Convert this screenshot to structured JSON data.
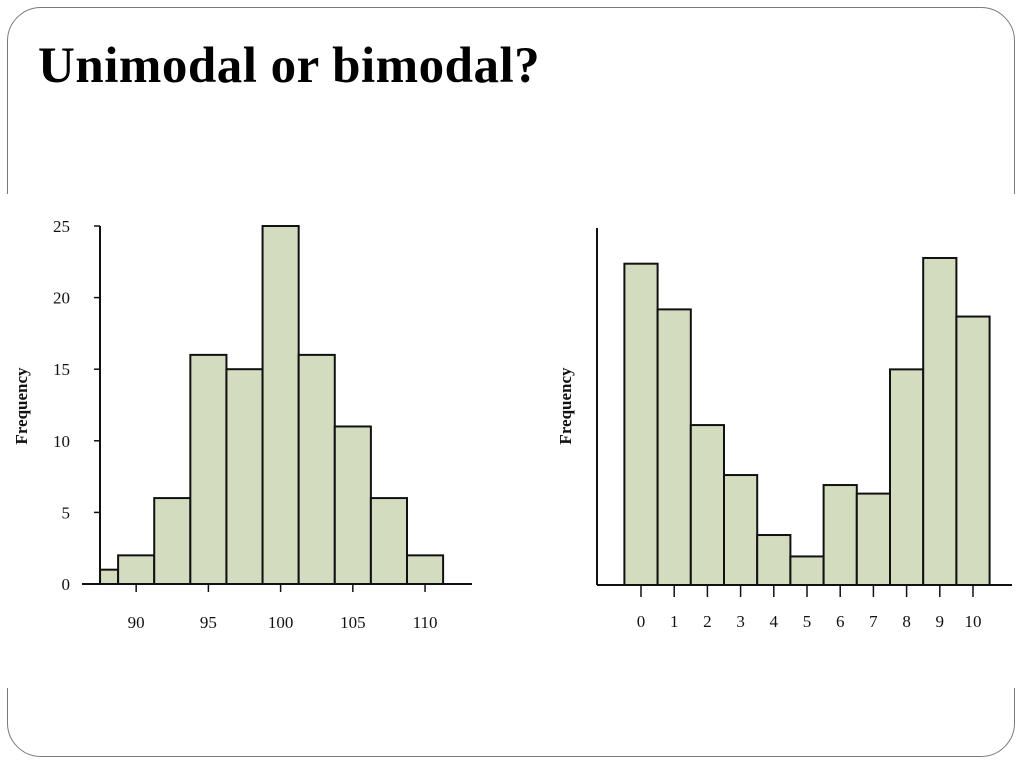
{
  "slide": {
    "title": "Unimodal or bimodal?"
  },
  "colors": {
    "bar_fill": "#d3dcbf",
    "bar_stroke": "#111111",
    "axis": "#111111"
  },
  "chart_data": [
    {
      "type": "bar",
      "title": "",
      "xlabel": "",
      "ylabel": "Frequency",
      "ylim": [
        0,
        25
      ],
      "y_ticks": [
        "0",
        "5",
        "10",
        "15",
        "20",
        "25"
      ],
      "x_ticks": [
        "90",
        "95",
        "100",
        "105",
        "110"
      ],
      "bins": [
        {
          "from": 87.5,
          "to": 88.75,
          "value": 1
        },
        {
          "from": 88.75,
          "to": 91.25,
          "value": 2
        },
        {
          "from": 91.25,
          "to": 93.75,
          "value": 6
        },
        {
          "from": 93.75,
          "to": 96.25,
          "value": 16
        },
        {
          "from": 96.25,
          "to": 98.75,
          "value": 15
        },
        {
          "from": 98.75,
          "to": 101.25,
          "value": 25
        },
        {
          "from": 101.25,
          "to": 103.75,
          "value": 16
        },
        {
          "from": 103.75,
          "to": 106.25,
          "value": 11
        },
        {
          "from": 106.25,
          "to": 108.75,
          "value": 6
        },
        {
          "from": 108.75,
          "to": 111.25,
          "value": 2
        }
      ],
      "grid": false,
      "legend": "none"
    },
    {
      "type": "bar",
      "title": "",
      "xlabel": "",
      "ylabel": "Frequency",
      "y_ticks": [],
      "x_ticks": [
        "0",
        "1",
        "2",
        "3",
        "4",
        "5",
        "6",
        "7",
        "8",
        "9",
        "10"
      ],
      "categories": [
        "0",
        "1",
        "2",
        "3",
        "4",
        "5",
        "6",
        "7",
        "8",
        "9",
        "10"
      ],
      "values": [
        22.5,
        19.3,
        11.2,
        7.7,
        3.5,
        2.0,
        7.0,
        6.4,
        15.1,
        22.9,
        18.8
      ],
      "ylim": [
        0,
        25
      ],
      "grid": false,
      "legend": "none"
    }
  ]
}
